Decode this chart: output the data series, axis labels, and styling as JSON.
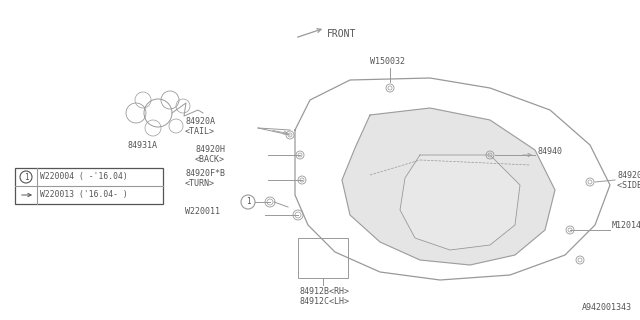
{
  "bg_color": "#ffffff",
  "line_color": "#999999",
  "text_color": "#555555",
  "diagram_number": "A942001343",
  "front_label": "FRONT",
  "legend": {
    "line1": "W220004（-’16.04）",
    "line2": "W220013（’16.04-）",
    "line1_plain": "W220004 ( -'16.04)",
    "line2_plain": "W220013 ('16.04- )"
  }
}
